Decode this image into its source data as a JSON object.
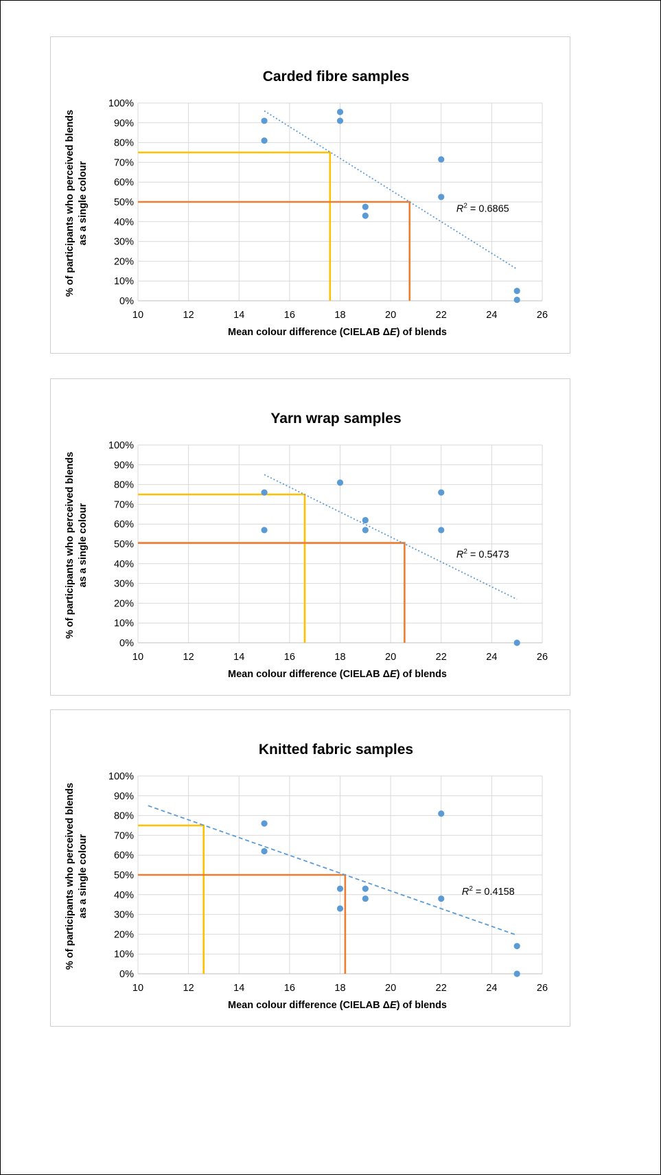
{
  "colors": {
    "grid": "#d9d9d9",
    "points": "#5b9bd5",
    "trendline": "#5b9bd5",
    "ref_75": "#ffc000",
    "ref_50": "#ed7d31"
  },
  "chart_data": [
    {
      "type": "scatter",
      "title": "Carded fibre samples",
      "xlabel": {
        "prefix": "Mean colour difference (CIELAB Δ",
        "italic": "E",
        "suffix": ") of blends"
      },
      "ylabel_line1": "% of participants who perceived blends",
      "ylabel_line2": "as a single colour",
      "xlim": [
        10,
        26
      ],
      "ylim": [
        0,
        100
      ],
      "x_ticks": [
        "10",
        "12",
        "14",
        "16",
        "18",
        "20",
        "22",
        "24",
        "26"
      ],
      "y_ticks": [
        "0%",
        "10%",
        "20%",
        "30%",
        "40%",
        "50%",
        "60%",
        "70%",
        "80%",
        "90%",
        "100%"
      ],
      "grid": "both",
      "series": [
        {
          "points": [
            [
              15,
              91
            ],
            [
              15,
              81
            ],
            [
              18,
              95.5
            ],
            [
              18,
              91
            ],
            [
              19,
              47.5
            ],
            [
              19,
              43
            ],
            [
              22,
              71.5
            ],
            [
              22,
              52.5
            ],
            [
              25,
              5
            ],
            [
              25,
              0.5
            ]
          ]
        }
      ],
      "trendline": {
        "style": "dotted",
        "x": [
          15,
          25
        ],
        "y": [
          96,
          16
        ]
      },
      "r_squared": {
        "label": "R",
        "sup": "2",
        "value": " = 0.6865"
      },
      "reference_lines": [
        {
          "color": "ref_75",
          "y": 75,
          "x": 17.6
        },
        {
          "color": "ref_50",
          "y": 50,
          "x": 20.75
        }
      ]
    },
    {
      "type": "scatter",
      "title": "Yarn wrap samples",
      "xlabel": {
        "prefix": "Mean colour difference (CIELAB Δ",
        "italic": "E",
        "suffix": ") of blends"
      },
      "ylabel_line1": "% of participants who perceived blends",
      "ylabel_line2": "as a single colour",
      "xlim": [
        10,
        26
      ],
      "ylim": [
        0,
        100
      ],
      "x_ticks": [
        "10",
        "12",
        "14",
        "16",
        "18",
        "20",
        "22",
        "24",
        "26"
      ],
      "y_ticks": [
        "0%",
        "10%",
        "20%",
        "30%",
        "40%",
        "50%",
        "60%",
        "70%",
        "80%",
        "90%",
        "100%"
      ],
      "grid": "both",
      "series": [
        {
          "points": [
            [
              15,
              76
            ],
            [
              15,
              57
            ],
            [
              18,
              81
            ],
            [
              19,
              62
            ],
            [
              19,
              57
            ],
            [
              22,
              76
            ],
            [
              22,
              57
            ],
            [
              25,
              0
            ]
          ]
        }
      ],
      "trendline": {
        "style": "dotted",
        "x": [
          15,
          25
        ],
        "y": [
          85,
          22
        ]
      },
      "r_squared": {
        "label": "R",
        "sup": "2",
        "value": " = 0.5473"
      },
      "reference_lines": [
        {
          "color": "ref_75",
          "y": 75,
          "x": 16.6
        },
        {
          "color": "ref_50",
          "y": 50.5,
          "x": 20.55
        }
      ]
    },
    {
      "type": "scatter",
      "title": "Knitted fabric samples",
      "xlabel": {
        "prefix": "Mean colour difference (CIELAB Δ",
        "italic": "E",
        "suffix": ") of blends"
      },
      "ylabel_line1": "% of participants who perceived blends",
      "ylabel_line2": "as a single colour",
      "xlim": [
        10,
        26
      ],
      "ylim": [
        0,
        100
      ],
      "x_ticks": [
        "10",
        "12",
        "14",
        "16",
        "18",
        "20",
        "22",
        "24",
        "26"
      ],
      "y_ticks": [
        "0%",
        "10%",
        "20%",
        "30%",
        "40%",
        "50%",
        "60%",
        "70%",
        "80%",
        "90%",
        "100%"
      ],
      "grid": "both",
      "series": [
        {
          "points": [
            [
              15,
              76
            ],
            [
              15,
              62
            ],
            [
              18,
              43
            ],
            [
              18,
              33
            ],
            [
              19,
              43
            ],
            [
              19,
              38
            ],
            [
              22,
              81
            ],
            [
              22,
              38
            ],
            [
              25,
              14
            ],
            [
              25,
              0
            ]
          ]
        }
      ],
      "trendline": {
        "style": "dashed-dotted",
        "x": [
          10.4,
          25
        ],
        "y": [
          85,
          19.5
        ]
      },
      "r_squared": {
        "label": "R",
        "sup": "2",
        "value": " = 0.4158"
      },
      "reference_lines": [
        {
          "color": "ref_75",
          "y": 75,
          "x": 12.6
        },
        {
          "color": "ref_50",
          "y": 50,
          "x": 18.2
        }
      ]
    }
  ]
}
